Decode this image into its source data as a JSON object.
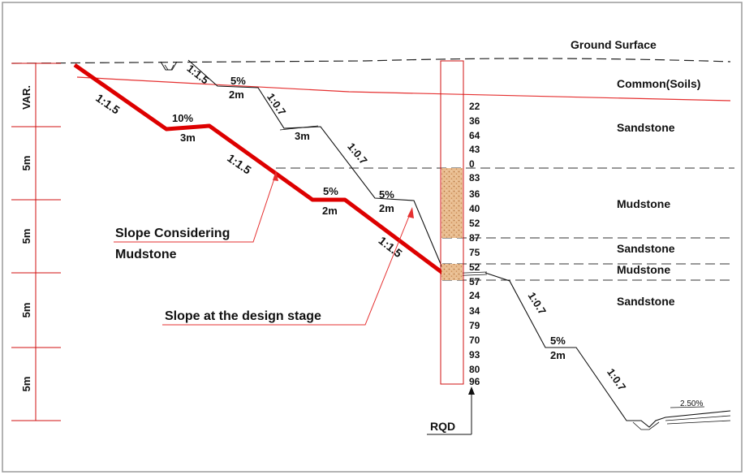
{
  "strata": {
    "ground_surface": "Ground Surface",
    "common_soils": "Common(Soils)",
    "sandstone_1": "Sandstone",
    "mudstone_1": "Mudstone",
    "sandstone_2": "Sandstone",
    "mudstone_2": "Mudstone",
    "sandstone_3": "Sandstone"
  },
  "scale": {
    "top": "VAR.",
    "segments": [
      "5m",
      "5m",
      "5m",
      "5m"
    ]
  },
  "design_slope": {
    "ratio_1": "1:1.5",
    "bench_1_grade": "10%",
    "bench_1_width": "3m",
    "ratio_2": "1:1.5",
    "bench_2_grade": "5%",
    "bench_2_width": "2m",
    "ratio_3": "1:1.5"
  },
  "mudstone_slope": {
    "ratio_1": "1:1.5",
    "bench_1_grade": "5%",
    "bench_1_width": "2m",
    "ratio_2": "1:0.7",
    "bench_2_width": "3m",
    "ratio_3": "1:0.7",
    "bench_3_grade": "5%",
    "bench_3_width": "2m"
  },
  "lower_slope": {
    "ratio_1": "1:0.7",
    "bench_grade": "5%",
    "bench_width": "2m",
    "ratio_2": "1:0.7",
    "ditch_grade": "2.50%"
  },
  "annotations": {
    "slope_mudstone_line1": "Slope Considering",
    "slope_mudstone_line2": "Mudstone",
    "slope_design": "Slope at the design stage",
    "rqd": "RQD"
  },
  "rqd_values": [
    "22",
    "36",
    "64",
    "43",
    "0",
    "83",
    "36",
    "40",
    "52",
    "87",
    "75",
    "52",
    "57",
    "24",
    "34",
    "79",
    "70",
    "93",
    "80",
    "96"
  ],
  "colors": {
    "design_slope": "#dd0000",
    "thin_red": "#e53030",
    "line": "#111111",
    "mudstone_fill": "#e7b98c",
    "border": "#9a9a9a"
  }
}
